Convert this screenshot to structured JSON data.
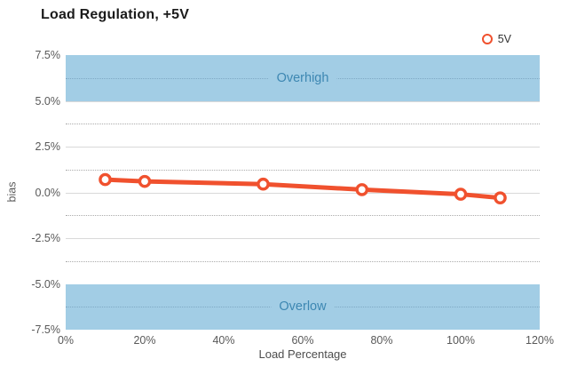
{
  "title": "Load Regulation, +5V",
  "legend": {
    "label": "5V"
  },
  "colors": {
    "line": "#f0512e",
    "marker_fill": "#ffffff",
    "band": "#a2cde5",
    "band_text": "#3d87b2",
    "grid_major": "#d9d9d9",
    "grid_minor": "#ababab",
    "axis_text": "#595959",
    "title_text": "#1b1b1b"
  },
  "chart_data": {
    "type": "line",
    "title": "Load Regulation, +5V",
    "xlabel": "Load Percentage",
    "ylabel": "bias",
    "xlim": [
      0,
      120
    ],
    "ylim": [
      -7.5,
      7.5
    ],
    "x": [
      10,
      20,
      50,
      75,
      100,
      110
    ],
    "series": [
      {
        "name": "5V",
        "values": [
          0.7,
          0.6,
          0.45,
          0.15,
          -0.1,
          -0.3
        ]
      }
    ],
    "x_ticks": {
      "values": [
        0,
        20,
        40,
        60,
        80,
        100,
        120
      ],
      "labels": [
        "0%",
        "20%",
        "40%",
        "60%",
        "80%",
        "100%",
        "120%"
      ]
    },
    "y_ticks": {
      "values": [
        7.5,
        5.0,
        2.5,
        0.0,
        -2.5,
        -5.0,
        -7.5
      ],
      "labels": [
        "7.5%",
        "5.0%",
        "2.5%",
        "0.0%",
        "-2.5%",
        "-5.0%",
        "-7.5%"
      ]
    },
    "y_minor_ticks": [
      6.25,
      3.75,
      1.25,
      -1.25,
      -3.75,
      -6.25
    ],
    "grid": "horizontal only: solid majors, dotted minors",
    "legend_position": "top-right",
    "bands": [
      {
        "label": "Overhigh",
        "from": 5.0,
        "to": 7.5
      },
      {
        "label": "Overlow",
        "from": -7.5,
        "to": -5.0
      }
    ]
  }
}
